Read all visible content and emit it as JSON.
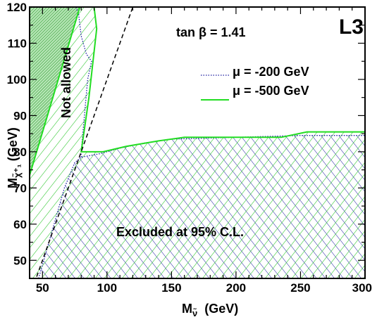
{
  "chart_data": {
    "type": "area",
    "experiment_label": "L3",
    "parameter_label": "tan β = 1.41",
    "xlabel": {
      "main": "M",
      "subscript": "ν̃",
      "unit": "(GeV)"
    },
    "ylabel": {
      "main": "M",
      "subscript": "χ̃⁺₁",
      "unit": "(GeV)"
    },
    "xlim": [
      40,
      300
    ],
    "ylim": [
      45,
      120
    ],
    "xticks": [
      50,
      100,
      150,
      200,
      250,
      300
    ],
    "yticks": [
      50,
      60,
      70,
      80,
      90,
      100,
      110,
      120
    ],
    "grid": false,
    "legend": {
      "placement": "top-right"
    },
    "annotations": {
      "not_allowed": "Not allowed",
      "excluded": "Excluded at 95% C.L."
    },
    "kinematic_boundary": {
      "style": "dashed",
      "points": [
        [
          40,
          40
        ],
        [
          120,
          120
        ]
      ]
    },
    "not_allowed_region": {
      "color": "#2db82d",
      "points": [
        [
          40,
          73.5
        ],
        [
          40,
          120
        ],
        [
          79,
          120
        ]
      ]
    },
    "series": [
      {
        "name": "μ = -200 GeV",
        "color": "#1a1aa0",
        "style": "dotted",
        "boundary": [
          [
            47,
            45
          ],
          [
            67,
            70
          ],
          [
            75,
            77
          ],
          [
            80,
            78.5
          ],
          [
            95,
            79.5
          ],
          [
            110,
            81
          ],
          [
            130,
            82.5
          ],
          [
            150,
            83.5
          ],
          [
            200,
            84
          ],
          [
            250,
            84.5
          ],
          [
            300,
            84.5
          ],
          [
            80,
            78.5
          ],
          [
            80,
            80
          ],
          [
            85,
            100
          ],
          [
            88,
            105
          ],
          [
            84,
            107
          ],
          [
            80,
            112
          ],
          [
            78,
            118
          ],
          [
            76,
            120
          ]
        ]
      },
      {
        "name": "μ = -500 GeV",
        "color": "#22dd22",
        "style": "solid",
        "boundary": [
          [
            40,
            45
          ],
          [
            40,
            73.5
          ],
          [
            79,
            120
          ],
          [
            90,
            120
          ],
          [
            92,
            114
          ],
          [
            86,
            95
          ],
          [
            80,
            80
          ],
          [
            97,
            80
          ],
          [
            115,
            81.5
          ],
          [
            140,
            83
          ],
          [
            160,
            84
          ],
          [
            235,
            84
          ],
          [
            255,
            85.5
          ],
          [
            300,
            85.5
          ],
          [
            300,
            45
          ]
        ]
      }
    ]
  }
}
